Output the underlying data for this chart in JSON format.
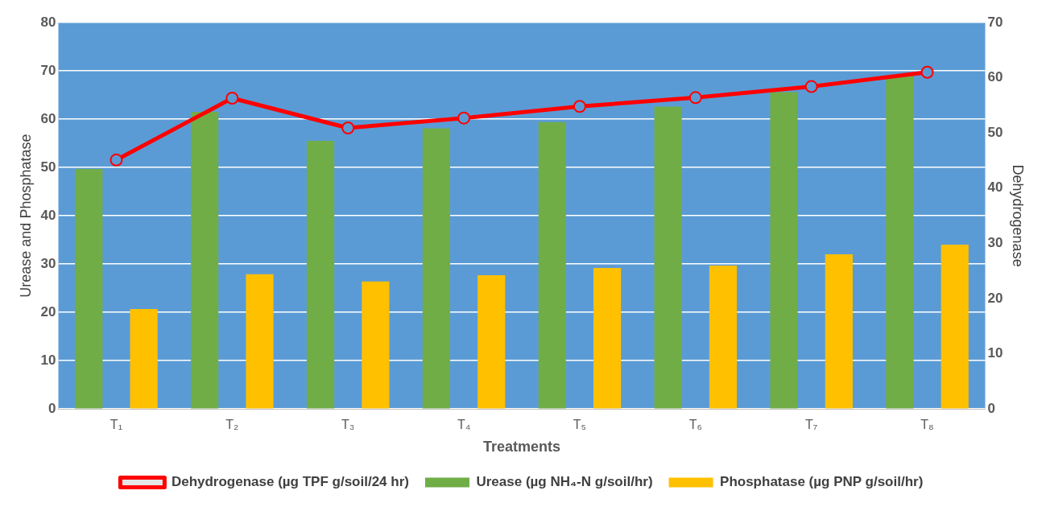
{
  "chart_data": {
    "type": "bar",
    "xlabel": "Treatments",
    "ylabel": "Urease and Phosphatase",
    "y2label": "Dehydrogenase",
    "categories": [
      "T₁",
      "T₂",
      "T₃",
      "T₄",
      "T₅",
      "T₆",
      "T₇",
      "T₈"
    ],
    "series": [
      {
        "name": "Urease (µg NH₄-N g/soil/hr)",
        "color": "#70ad47",
        "values": [
          49.7,
          61.5,
          55.5,
          58.1,
          59.4,
          62.6,
          65.6,
          69.0
        ]
      },
      {
        "name": "Phosphatase (µg PNP g/soil/hr)",
        "color": "#ffc000",
        "values": [
          20.7,
          27.9,
          26.4,
          27.7,
          29.2,
          29.7,
          32.0,
          34.0
        ]
      },
      {
        "name": "Dehydrogenase (µg TPF g/soil/24 hr)",
        "type": "line",
        "axis": "y2",
        "color": "#ff0000",
        "marker": "circle",
        "values": [
          45.1,
          56.3,
          50.9,
          52.7,
          54.8,
          56.4,
          58.4,
          61.0
        ]
      }
    ],
    "ylim": [
      0,
      80
    ],
    "yticks": [
      0,
      10,
      20,
      30,
      40,
      50,
      60,
      70,
      80
    ],
    "y2lim": [
      0,
      70
    ],
    "y2ticks": [
      0,
      10,
      20,
      30,
      40,
      50,
      60,
      70
    ],
    "grid": "y",
    "legend": "bottom"
  }
}
